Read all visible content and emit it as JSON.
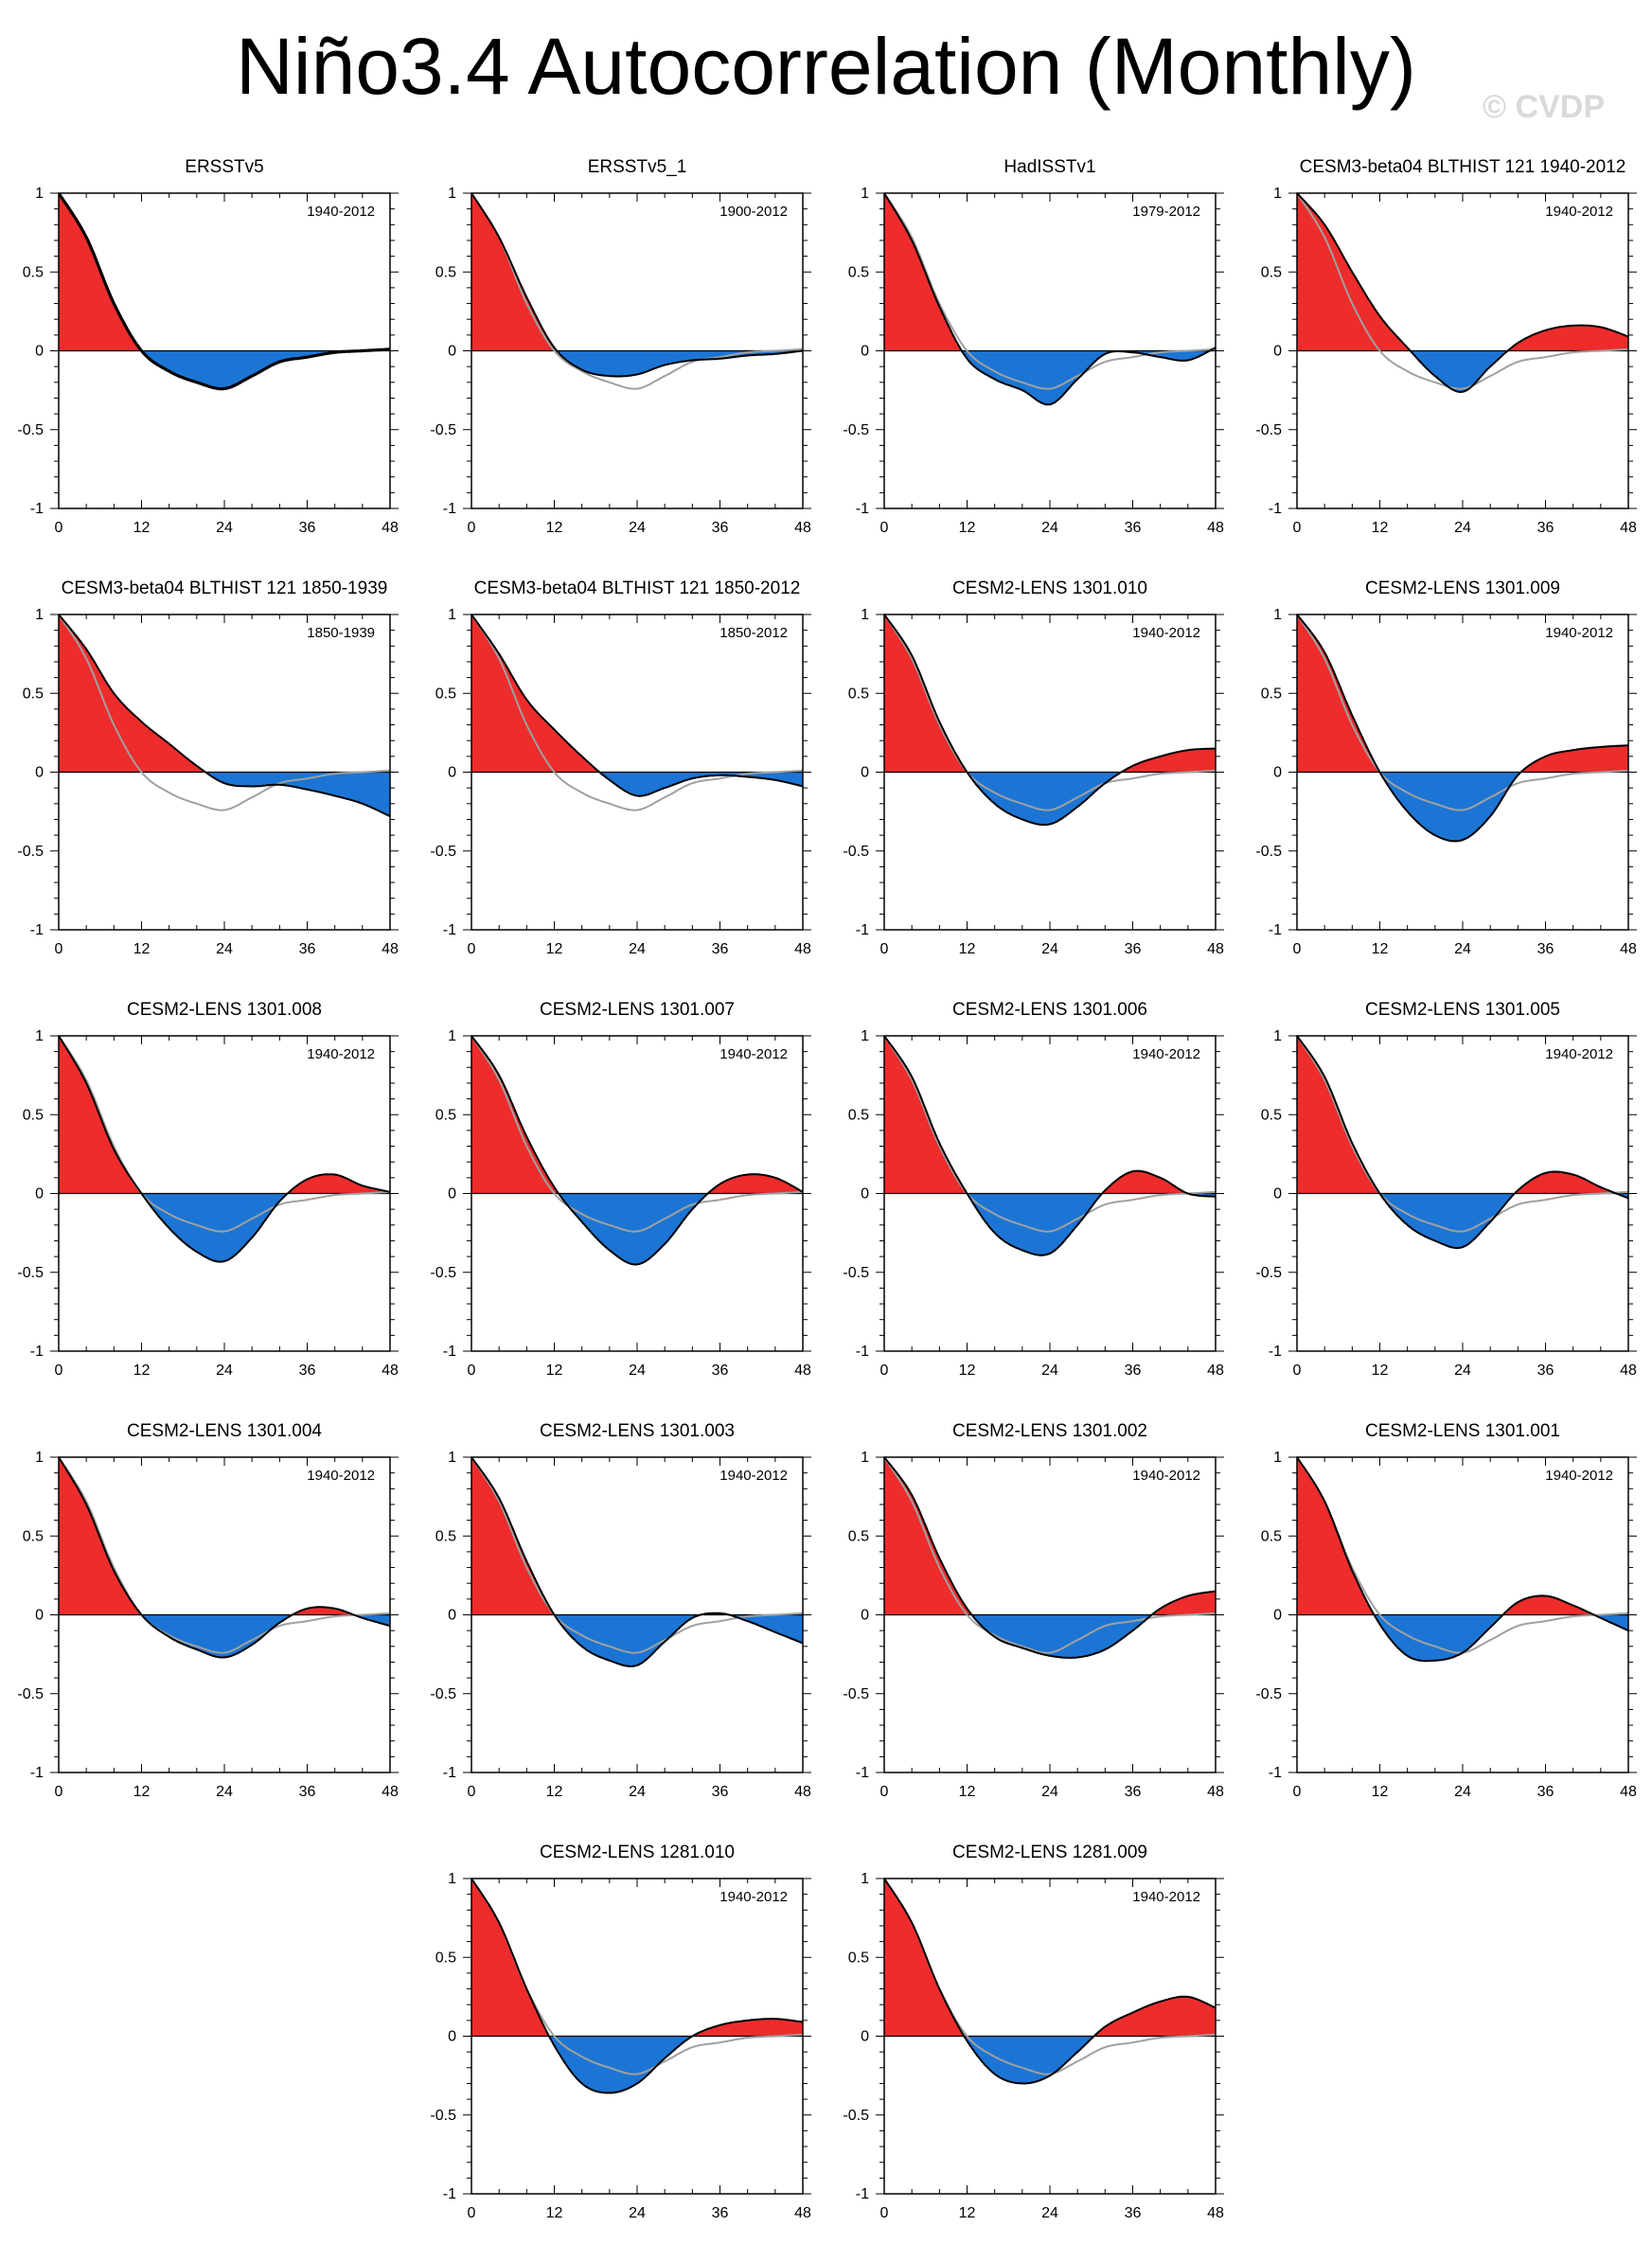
{
  "title": "Niño3.4 Autocorrelation (Monthly)",
  "watermark": "© CVDP",
  "colors": {
    "positive": "#ee2c2c",
    "negative": "#1c75d4",
    "reference": "#a0a0a0",
    "line": "#000000"
  },
  "chart_data": [
    {
      "type": "area",
      "title": "ERSSTv5",
      "period": "1940-2012",
      "xlim": [
        0,
        48
      ],
      "ylim": [
        -1,
        1
      ],
      "xticks": [
        "0",
        "12",
        "24",
        "36",
        "48"
      ],
      "yticks": [
        "1",
        "0.5",
        "0",
        "-0.5",
        "-1"
      ],
      "x": [
        0,
        4,
        8,
        12,
        16,
        20,
        24,
        28,
        32,
        36,
        40,
        44,
        48
      ],
      "values": [
        1.0,
        0.72,
        0.3,
        0.0,
        -0.13,
        -0.2,
        -0.24,
        -0.16,
        -0.07,
        -0.04,
        -0.01,
        0.0,
        0.01
      ],
      "show_reference": false
    },
    {
      "type": "area",
      "title": "ERSSTv5_1",
      "period": "1900-2012",
      "xlim": [
        0,
        48
      ],
      "ylim": [
        -1,
        1
      ],
      "xticks": [
        "0",
        "12",
        "24",
        "36",
        "48"
      ],
      "yticks": [
        "1",
        "0.5",
        "0",
        "-0.5",
        "-1"
      ],
      "x": [
        0,
        4,
        8,
        12,
        16,
        20,
        24,
        28,
        32,
        36,
        40,
        44,
        48
      ],
      "values": [
        1.0,
        0.72,
        0.34,
        0.02,
        -0.12,
        -0.16,
        -0.15,
        -0.09,
        -0.06,
        -0.05,
        -0.03,
        -0.02,
        0.0
      ],
      "show_reference": true
    },
    {
      "type": "area",
      "title": "HadISSTv1",
      "period": "1979-2012",
      "xlim": [
        0,
        48
      ],
      "ylim": [
        -1,
        1
      ],
      "xticks": [
        "0",
        "12",
        "24",
        "36",
        "48"
      ],
      "yticks": [
        "1",
        "0.5",
        "0",
        "-0.5",
        "-1"
      ],
      "x": [
        0,
        4,
        8,
        12,
        16,
        20,
        24,
        28,
        32,
        36,
        40,
        44,
        48
      ],
      "values": [
        1.0,
        0.7,
        0.28,
        -0.05,
        -0.18,
        -0.25,
        -0.34,
        -0.18,
        -0.02,
        -0.01,
        -0.04,
        -0.06,
        0.02
      ],
      "show_reference": true
    },
    {
      "type": "area",
      "title": "CESM3-beta04 BLTHIST 121 1940-2012",
      "period": "1940-2012",
      "xlim": [
        0,
        48
      ],
      "ylim": [
        -1,
        1
      ],
      "xticks": [
        "0",
        "12",
        "24",
        "36",
        "48"
      ],
      "yticks": [
        "1",
        "0.5",
        "0",
        "-0.5",
        "-1"
      ],
      "x": [
        0,
        4,
        8,
        12,
        16,
        20,
        24,
        28,
        32,
        36,
        40,
        44,
        48
      ],
      "values": [
        1.0,
        0.8,
        0.5,
        0.22,
        0.02,
        -0.16,
        -0.26,
        -0.1,
        0.05,
        0.13,
        0.16,
        0.15,
        0.09
      ],
      "show_reference": true
    },
    {
      "type": "area",
      "title": "CESM3-beta04 BLTHIST 121 1850-1939",
      "period": "1850-1939",
      "xlim": [
        0,
        48
      ],
      "ylim": [
        -1,
        1
      ],
      "xticks": [
        "0",
        "12",
        "24",
        "36",
        "48"
      ],
      "yticks": [
        "1",
        "0.5",
        "0",
        "-0.5",
        "-1"
      ],
      "x": [
        0,
        4,
        8,
        12,
        16,
        20,
        24,
        28,
        32,
        36,
        40,
        44,
        48
      ],
      "values": [
        1.0,
        0.78,
        0.5,
        0.32,
        0.18,
        0.04,
        -0.07,
        -0.09,
        -0.08,
        -0.11,
        -0.15,
        -0.2,
        -0.28
      ],
      "show_reference": true
    },
    {
      "type": "area",
      "title": "CESM3-beta04 BLTHIST 121 1850-2012",
      "period": "1850-2012",
      "xlim": [
        0,
        48
      ],
      "ylim": [
        -1,
        1
      ],
      "xticks": [
        "0",
        "12",
        "24",
        "36",
        "48"
      ],
      "yticks": [
        "1",
        "0.5",
        "0",
        "-0.5",
        "-1"
      ],
      "x": [
        0,
        4,
        8,
        12,
        16,
        20,
        24,
        28,
        32,
        36,
        40,
        44,
        48
      ],
      "values": [
        1.0,
        0.75,
        0.46,
        0.27,
        0.1,
        -0.05,
        -0.15,
        -0.1,
        -0.04,
        -0.02,
        -0.03,
        -0.05,
        -0.09
      ],
      "show_reference": true
    },
    {
      "type": "area",
      "title": "CESM2-LENS 1301.010",
      "period": "1940-2012",
      "xlim": [
        0,
        48
      ],
      "ylim": [
        -1,
        1
      ],
      "xticks": [
        "0",
        "12",
        "24",
        "36",
        "48"
      ],
      "yticks": [
        "1",
        "0.5",
        "0",
        "-0.5",
        "-1"
      ],
      "x": [
        0,
        4,
        8,
        12,
        16,
        20,
        24,
        28,
        32,
        36,
        40,
        44,
        48
      ],
      "values": [
        1.0,
        0.74,
        0.32,
        0.0,
        -0.2,
        -0.3,
        -0.33,
        -0.22,
        -0.07,
        0.04,
        0.1,
        0.14,
        0.15
      ],
      "show_reference": true
    },
    {
      "type": "area",
      "title": "CESM2-LENS 1301.009",
      "period": "1940-2012",
      "xlim": [
        0,
        48
      ],
      "ylim": [
        -1,
        1
      ],
      "xticks": [
        "0",
        "12",
        "24",
        "36",
        "48"
      ],
      "yticks": [
        "1",
        "0.5",
        "0",
        "-0.5",
        "-1"
      ],
      "x": [
        0,
        4,
        8,
        12,
        16,
        20,
        24,
        28,
        32,
        36,
        40,
        44,
        48
      ],
      "values": [
        1.0,
        0.76,
        0.36,
        0.0,
        -0.25,
        -0.4,
        -0.43,
        -0.28,
        -0.02,
        0.1,
        0.14,
        0.16,
        0.17
      ],
      "show_reference": true
    },
    {
      "type": "area",
      "title": "CESM2-LENS 1301.008",
      "period": "1940-2012",
      "xlim": [
        0,
        48
      ],
      "ylim": [
        -1,
        1
      ],
      "xticks": [
        "0",
        "12",
        "24",
        "36",
        "48"
      ],
      "yticks": [
        "1",
        "0.5",
        "0",
        "-0.5",
        "-1"
      ],
      "x": [
        0,
        4,
        8,
        12,
        16,
        20,
        24,
        28,
        32,
        36,
        40,
        44,
        48
      ],
      "values": [
        1.0,
        0.7,
        0.28,
        0.0,
        -0.22,
        -0.37,
        -0.43,
        -0.28,
        -0.05,
        0.09,
        0.12,
        0.05,
        0.01
      ],
      "show_reference": true
    },
    {
      "type": "area",
      "title": "CESM2-LENS 1301.007",
      "period": "1940-2012",
      "xlim": [
        0,
        48
      ],
      "ylim": [
        -1,
        1
      ],
      "xticks": [
        "0",
        "12",
        "24",
        "36",
        "48"
      ],
      "yticks": [
        "1",
        "0.5",
        "0",
        "-0.5",
        "-1"
      ],
      "x": [
        0,
        4,
        8,
        12,
        16,
        20,
        24,
        28,
        32,
        36,
        40,
        44,
        48
      ],
      "values": [
        1.0,
        0.75,
        0.36,
        0.04,
        -0.18,
        -0.36,
        -0.45,
        -0.32,
        -0.1,
        0.06,
        0.12,
        0.1,
        0.01
      ],
      "show_reference": true
    },
    {
      "type": "area",
      "title": "CESM2-LENS 1301.006",
      "period": "1940-2012",
      "xlim": [
        0,
        48
      ],
      "ylim": [
        -1,
        1
      ],
      "xticks": [
        "0",
        "12",
        "24",
        "36",
        "48"
      ],
      "yticks": [
        "1",
        "0.5",
        "0",
        "-0.5",
        "-1"
      ],
      "x": [
        0,
        4,
        8,
        12,
        16,
        20,
        24,
        28,
        32,
        36,
        40,
        44,
        48
      ],
      "values": [
        1.0,
        0.74,
        0.32,
        0.0,
        -0.25,
        -0.36,
        -0.38,
        -0.2,
        0.02,
        0.14,
        0.1,
        0.0,
        -0.02
      ],
      "show_reference": true
    },
    {
      "type": "area",
      "title": "CESM2-LENS 1301.005",
      "period": "1940-2012",
      "xlim": [
        0,
        48
      ],
      "ylim": [
        -1,
        1
      ],
      "xticks": [
        "0",
        "12",
        "24",
        "36",
        "48"
      ],
      "yticks": [
        "1",
        "0.5",
        "0",
        "-0.5",
        "-1"
      ],
      "x": [
        0,
        4,
        8,
        12,
        16,
        20,
        24,
        28,
        32,
        36,
        40,
        44,
        48
      ],
      "values": [
        1.0,
        0.74,
        0.32,
        0.0,
        -0.2,
        -0.3,
        -0.34,
        -0.18,
        0.02,
        0.13,
        0.12,
        0.04,
        -0.03
      ],
      "show_reference": true
    },
    {
      "type": "area",
      "title": "CESM2-LENS 1301.004",
      "period": "1940-2012",
      "xlim": [
        0,
        48
      ],
      "ylim": [
        -1,
        1
      ],
      "xticks": [
        "0",
        "12",
        "24",
        "36",
        "48"
      ],
      "yticks": [
        "1",
        "0.5",
        "0",
        "-0.5",
        "-1"
      ],
      "x": [
        0,
        4,
        8,
        12,
        16,
        20,
        24,
        28,
        32,
        36,
        40,
        44,
        48
      ],
      "values": [
        1.0,
        0.7,
        0.28,
        0.0,
        -0.14,
        -0.22,
        -0.27,
        -0.19,
        -0.05,
        0.04,
        0.04,
        -0.02,
        -0.07
      ],
      "show_reference": true
    },
    {
      "type": "area",
      "title": "CESM2-LENS 1301.003",
      "period": "1940-2012",
      "xlim": [
        0,
        48
      ],
      "ylim": [
        -1,
        1
      ],
      "xticks": [
        "0",
        "12",
        "24",
        "36",
        "48"
      ],
      "yticks": [
        "1",
        "0.5",
        "0",
        "-0.5",
        "-1"
      ],
      "x": [
        0,
        4,
        8,
        12,
        16,
        20,
        24,
        28,
        32,
        36,
        40,
        44,
        48
      ],
      "values": [
        1.0,
        0.74,
        0.34,
        0.0,
        -0.2,
        -0.29,
        -0.32,
        -0.17,
        -0.02,
        0.01,
        -0.04,
        -0.11,
        -0.18
      ],
      "show_reference": true
    },
    {
      "type": "area",
      "title": "CESM2-LENS 1301.002",
      "period": "1940-2012",
      "xlim": [
        0,
        48
      ],
      "ylim": [
        -1,
        1
      ],
      "xticks": [
        "0",
        "12",
        "24",
        "36",
        "48"
      ],
      "yticks": [
        "1",
        "0.5",
        "0",
        "-0.5",
        "-1"
      ],
      "x": [
        0,
        4,
        8,
        12,
        16,
        20,
        24,
        28,
        32,
        36,
        40,
        44,
        48
      ],
      "values": [
        1.0,
        0.76,
        0.36,
        0.04,
        -0.14,
        -0.21,
        -0.26,
        -0.27,
        -0.22,
        -0.1,
        0.04,
        0.12,
        0.15
      ],
      "show_reference": true
    },
    {
      "type": "area",
      "title": "CESM2-LENS 1301.001",
      "period": "1940-2012",
      "xlim": [
        0,
        48
      ],
      "ylim": [
        -1,
        1
      ],
      "xticks": [
        "0",
        "12",
        "24",
        "36",
        "48"
      ],
      "yticks": [
        "1",
        "0.5",
        "0",
        "-0.5",
        "-1"
      ],
      "x": [
        0,
        4,
        8,
        12,
        16,
        20,
        24,
        28,
        32,
        36,
        40,
        44,
        48
      ],
      "values": [
        1.0,
        0.72,
        0.28,
        -0.06,
        -0.26,
        -0.29,
        -0.24,
        -0.08,
        0.08,
        0.12,
        0.06,
        -0.02,
        -0.1
      ],
      "show_reference": true
    },
    {
      "type": "area",
      "title": "CESM2-LENS 1281.010",
      "period": "1940-2012",
      "xlim": [
        0,
        48
      ],
      "ylim": [
        -1,
        1
      ],
      "xticks": [
        "0",
        "12",
        "24",
        "36",
        "48"
      ],
      "yticks": [
        "1",
        "0.5",
        "0",
        "-0.5",
        "-1"
      ],
      "x": [
        0,
        4,
        8,
        12,
        16,
        20,
        24,
        28,
        32,
        36,
        40,
        44,
        48
      ],
      "values": [
        1.0,
        0.72,
        0.3,
        -0.06,
        -0.3,
        -0.36,
        -0.3,
        -0.14,
        0.0,
        0.07,
        0.1,
        0.11,
        0.09
      ],
      "show_reference": true
    },
    {
      "type": "area",
      "title": "CESM2-LENS 1281.009",
      "period": "1940-2012",
      "xlim": [
        0,
        48
      ],
      "ylim": [
        -1,
        1
      ],
      "xticks": [
        "0",
        "12",
        "24",
        "36",
        "48"
      ],
      "yticks": [
        "1",
        "0.5",
        "0",
        "-0.5",
        "-1"
      ],
      "x": [
        0,
        4,
        8,
        12,
        16,
        20,
        24,
        28,
        32,
        36,
        40,
        44,
        48
      ],
      "values": [
        1.0,
        0.72,
        0.3,
        -0.03,
        -0.24,
        -0.3,
        -0.25,
        -0.1,
        0.06,
        0.15,
        0.22,
        0.25,
        0.18
      ],
      "show_reference": true
    }
  ]
}
